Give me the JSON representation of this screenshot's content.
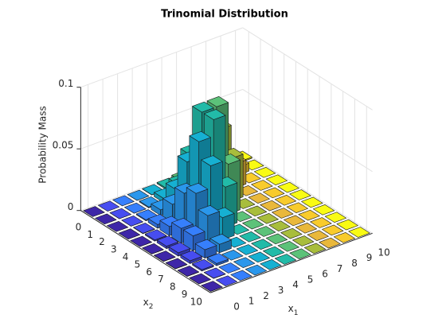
{
  "chart_data": {
    "type": "bar3",
    "title": "Trinomial Distribution",
    "xlabel": "x",
    "xlabel_sub": "1",
    "ylabel": "x",
    "ylabel_sub": "2",
    "zlabel": "Probability Mass",
    "x": [
      0,
      1,
      2,
      3,
      4,
      5,
      6,
      7,
      8,
      9,
      10
    ],
    "y": [
      0,
      1,
      2,
      3,
      4,
      5,
      6,
      7,
      8,
      9,
      10
    ],
    "zlim": [
      0,
      0.1
    ],
    "zticks": [
      0,
      0.05,
      0.1
    ],
    "grid": true,
    "series": [
      {
        "color": "#3e26a8",
        "values": [
          0,
          0,
          0,
          2e-05,
          6e-05,
          0.00013,
          0.00022,
          0.00025,
          0.00019,
          8e-05,
          2e-05
        ]
      },
      {
        "color": "#474df0",
        "values": [
          0,
          1e-05,
          7e-05,
          0.00033,
          0.001,
          0.002,
          0.00267,
          0.00229,
          0.00114,
          0.00025,
          0
        ]
      },
      {
        "color": "#367ffc",
        "values": [
          1e-05,
          0.00011,
          0.00075,
          0.003,
          0.0075,
          0.012,
          0.012,
          0.00686,
          0.00171,
          0,
          0
        ]
      },
      {
        "color": "#2a97ec",
        "values": [
          5e-05,
          0.00075,
          0.0045,
          0.015,
          0.03001,
          0.03601,
          0.02401,
          0.00686,
          0,
          0,
          0
        ]
      },
      {
        "color": "#16b0d2",
        "values": [
          0.00028,
          0.00338,
          0.01688,
          0.04501,
          0.06752,
          0.05401,
          0.018,
          0,
          0,
          0,
          0
        ]
      },
      {
        "color": "#22bba8",
        "values": [
          0.00101,
          0.01013,
          0.04051,
          0.08102,
          0.08102,
          0.03241,
          0,
          0,
          0,
          0,
          0
        ]
      },
      {
        "color": "#5cc279",
        "values": [
          0.00253,
          0.02025,
          0.06076,
          0.08102,
          0.04051,
          0,
          0,
          0,
          0,
          0,
          0
        ]
      },
      {
        "color": "#a8bd3c",
        "values": [
          0.00434,
          0.02604,
          0.05208,
          0.03472,
          0,
          0,
          0,
          0,
          0,
          0,
          0
        ]
      },
      {
        "color": "#e9b83b",
        "values": [
          0.00488,
          0.01953,
          0.01953,
          0,
          0,
          0,
          0,
          0,
          0,
          0,
          0
        ]
      },
      {
        "color": "#f8cb2c",
        "values": [
          0.00326,
          0.00651,
          0,
          0,
          0,
          0,
          0,
          0,
          0,
          0,
          0
        ]
      },
      {
        "color": "#f9fb14",
        "values": [
          0.00098,
          0,
          0,
          0,
          0,
          0,
          0,
          0,
          0,
          0,
          0
        ]
      }
    ]
  }
}
